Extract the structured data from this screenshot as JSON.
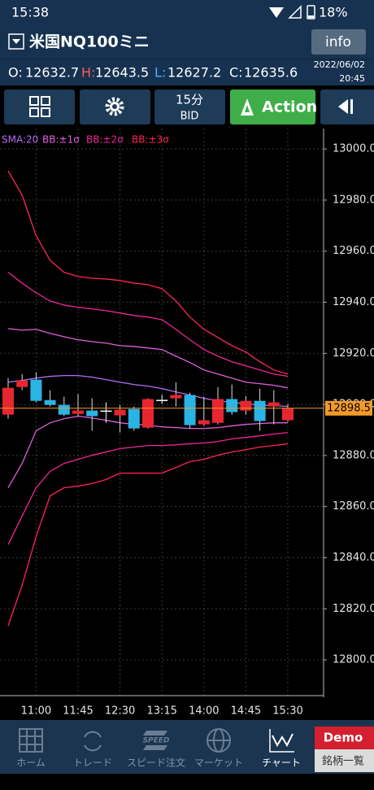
{
  "status_bar": {
    "time": "15:38",
    "battery": "18%"
  },
  "header": {
    "symbol": "米国NQ100ミニ",
    "info_button": "info",
    "date": "2022/06/02",
    "time": "20:45",
    "ohlc": [
      {
        "label": "O:",
        "value": "12632.7"
      },
      {
        "label": "H:",
        "value": "12643.5"
      },
      {
        "label": "L:",
        "value": "12627.2"
      },
      {
        "label": "C:",
        "value": "12635.6"
      }
    ]
  },
  "toolbar": {
    "interval": "15分",
    "price_side": "BID",
    "action": "Action"
  },
  "chart_data": {
    "type": "candlestick",
    "categories": [
      null,
      null,
      "11:00",
      null,
      null,
      "11:45",
      null,
      null,
      "12:30",
      null,
      null,
      "13:15",
      null,
      null,
      "14:00",
      null,
      null,
      "14:45",
      null,
      null,
      "15:30"
    ],
    "open": [
      12896.0,
      12906.8,
      12909.7,
      12901.7,
      12899.8,
      12896.3,
      12897.6,
      12897.6,
      12895.7,
      12898.2,
      12890.9,
      12901.8,
      12902.4,
      12903.7,
      12892.2,
      12892.8,
      12902.1,
      12897.6,
      12901.4,
      12899.2,
      12893.8
    ],
    "high": [
      12910.3,
      12911.9,
      12912.6,
      12905.6,
      12903.0,
      12904.0,
      12902.4,
      12900.8,
      12899.8,
      12899.2,
      12902.4,
      12903.7,
      12908.7,
      12904.6,
      12903.0,
      12906.8,
      12907.8,
      12903.3,
      12906.2,
      12905.6,
      12900.2
    ],
    "low": [
      12894.4,
      12905.6,
      12900.8,
      12899.2,
      12895.4,
      12895.4,
      12889.7,
      12892.8,
      12889.0,
      12889.7,
      12890.6,
      12900.2,
      12899.2,
      12890.6,
      12891.6,
      12892.2,
      12896.0,
      12896.0,
      12889.7,
      12892.2,
      12893.2
    ],
    "close": [
      12906.5,
      12909.4,
      12901.4,
      12899.8,
      12896.0,
      12897.6,
      12895.4,
      12897.4,
      12897.9,
      12890.6,
      12902.1,
      12901.6,
      12903.7,
      12891.9,
      12893.8,
      12902.1,
      12897.0,
      12901.4,
      12893.5,
      12900.8,
      12898.5
    ],
    "up_color": "#e8262f",
    "down_color": "#2ab4e6",
    "doji_color": "#ffffff",
    "indicators": [
      {
        "name": "SMA:20",
        "color": "#b66cf2",
        "values": [
          12908.7,
          12909.4,
          12910.3,
          12911.0,
          12911.3,
          12911.3,
          12910.7,
          12909.7,
          12908.7,
          12907.8,
          12907.2,
          12906.2,
          12904.9,
          12903.7,
          12902.4,
          12901.4,
          12900.8,
          12900.2,
          12899.8,
          12899.5,
          12899.2
        ]
      },
      {
        "name": "BB:±1σ",
        "color": "#e060dc",
        "upper": [
          12929.7,
          12929.1,
          12929.4,
          12927.8,
          12926.5,
          12925.3,
          12924.6,
          12924.0,
          12923.0,
          12922.7,
          12922.1,
          12921.5,
          12918.9,
          12916.4,
          12913.5,
          12911.9,
          12910.3,
          12908.7,
          12908.1,
          12907.5,
          12906.5
        ],
        "lower": [
          12867.4,
          12876.9,
          12889.7,
          12892.8,
          12894.4,
          12895.4,
          12894.7,
          12893.8,
          12892.8,
          12892.2,
          12891.9,
          12891.2,
          12890.9,
          12890.6,
          12890.6,
          12890.9,
          12891.6,
          12892.2,
          12892.5,
          12892.8,
          12892.8
        ]
      },
      {
        "name": "BB:±2σ",
        "color": "#f0259a",
        "upper": [
          12951.7,
          12947.5,
          12943.7,
          12940.5,
          12938.9,
          12938.0,
          12937.4,
          12936.7,
          12935.8,
          12934.8,
          12934.2,
          12933.2,
          12929.4,
          12925.3,
          12921.5,
          12918.9,
          12916.7,
          12915.1,
          12913.5,
          12911.9,
          12911.0
        ],
        "lower": [
          12845.1,
          12856.3,
          12867.4,
          12873.8,
          12876.9,
          12878.5,
          12880.1,
          12881.4,
          12882.7,
          12883.3,
          12883.9,
          12883.9,
          12884.2,
          12884.6,
          12884.9,
          12885.5,
          12886.5,
          12887.1,
          12887.7,
          12888.4,
          12889.0
        ]
      },
      {
        "name": "BB:±3σ",
        "color": "#ff2458",
        "upper": [
          12991.4,
          12981.9,
          12966.0,
          12956.4,
          12951.7,
          12950.1,
          12949.4,
          12949.1,
          12948.5,
          12947.5,
          12946.9,
          12945.3,
          12940.5,
          12934.2,
          12929.4,
          12926.2,
          12923.0,
          12920.5,
          12916.7,
          12913.5,
          12911.9
        ],
        "lower": [
          12813.3,
          12829.2,
          12848.3,
          12864.2,
          12867.4,
          12868.0,
          12869.0,
          12870.6,
          12873.1,
          12873.1,
          12873.1,
          12873.1,
          12875.3,
          12877.6,
          12878.5,
          12880.1,
          12881.4,
          12882.3,
          12883.3,
          12883.9,
          12884.6
        ]
      }
    ],
    "last_price": 12898.5,
    "last_price_color": "#f39a2a",
    "ylim": [
      12786,
      13008
    ],
    "yticks": [
      {
        "value": 12800,
        "label": "12800.0"
      },
      {
        "value": 12820,
        "label": "12820.0"
      },
      {
        "value": 12840,
        "label": "12840.0"
      },
      {
        "value": 12860,
        "label": "12860.0"
      },
      {
        "value": 12880,
        "label": "12880.0"
      },
      {
        "value": 12900,
        "label": "12900.0"
      },
      {
        "value": 12920,
        "label": "12920.0"
      },
      {
        "value": 12940,
        "label": "12940.0"
      },
      {
        "value": 12960,
        "label": "12960.0"
      },
      {
        "value": 12980,
        "label": "12980.0"
      },
      {
        "value": 13000,
        "label": "13000.0"
      }
    ],
    "grid": true
  },
  "bottom_nav": {
    "items": [
      "ホーム",
      "トレード",
      "スピード注文",
      "マーケット",
      "チャート"
    ],
    "speed_icon": "SPEED",
    "demo": "Demo",
    "symbols": "銘柄一覧"
  }
}
